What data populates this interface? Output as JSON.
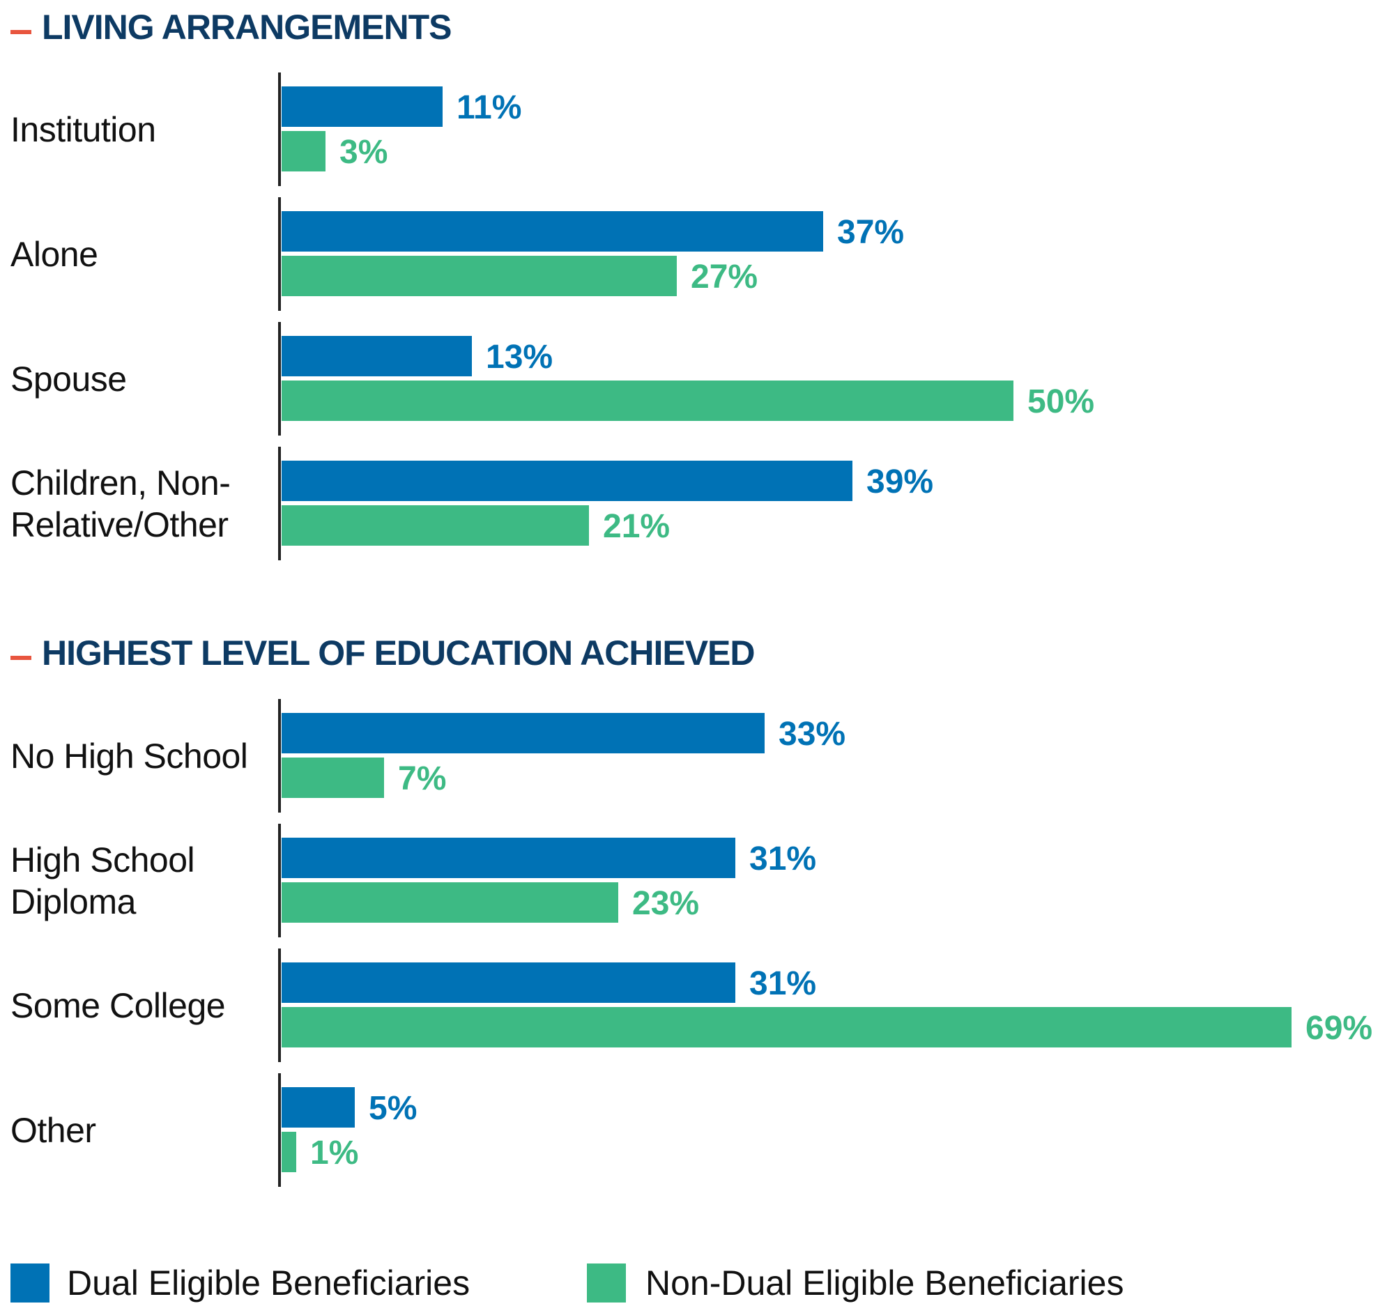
{
  "chart_data": [
    {
      "type": "bar",
      "orientation": "horizontal",
      "title": "LIVING ARRANGEMENTS",
      "categories": [
        "Institution",
        "Alone",
        "Spouse",
        "Children, Non-Relative/Other"
      ],
      "series": [
        {
          "name": "Dual Eligible Beneficiaries",
          "values": [
            11,
            37,
            13,
            39
          ],
          "labels": [
            "11%",
            "37%",
            "13%",
            "39%"
          ]
        },
        {
          "name": "Non-Dual Eligible Beneficiaries",
          "values": [
            3,
            27,
            50,
            21
          ],
          "labels": [
            "3%",
            "27%",
            "50%",
            "21%"
          ]
        }
      ],
      "unit": "%",
      "grid": false
    },
    {
      "type": "bar",
      "orientation": "horizontal",
      "title": "HIGHEST LEVEL OF EDUCATION ACHIEVED",
      "categories": [
        "No High School",
        "High School Diploma",
        "Some College",
        "Other"
      ],
      "series": [
        {
          "name": "Dual Eligible Beneficiaries",
          "values": [
            33,
            31,
            31,
            5
          ],
          "labels": [
            "33%",
            "31%",
            "31%",
            "5%"
          ]
        },
        {
          "name": "Non-Dual Eligible Beneficiaries",
          "values": [
            7,
            23,
            69,
            1
          ],
          "labels": [
            "7%",
            "23%",
            "69%",
            "1%"
          ]
        }
      ],
      "unit": "%",
      "grid": false
    }
  ],
  "legend": {
    "placement": "bottom",
    "items": [
      {
        "label": "Dual Eligible Beneficiaries",
        "color": "#0072b5"
      },
      {
        "label": "Non-Dual Eligible Beneficiaries",
        "color": "#3dba84"
      }
    ]
  },
  "colors": {
    "dual": "#0072b5",
    "non_dual": "#3dba84",
    "title": "#0d3a63",
    "accent_dash": "#e8553e"
  }
}
